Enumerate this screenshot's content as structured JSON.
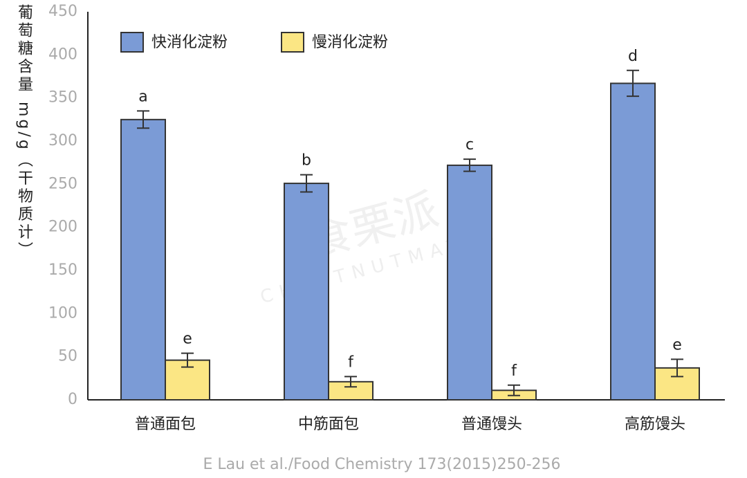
{
  "chart_data": {
    "type": "bar",
    "y_label": "葡萄糖含量 mg/g（干物质计）",
    "source": "E Lau et al./Food Chemistry 173(2015)250-256",
    "watermark": [
      "食栗派",
      "CHESTNUTMATES"
    ],
    "categories": [
      "普通面包",
      "中筋面包",
      "普通馒头",
      "高筋馒头"
    ],
    "series": [
      {
        "name": "快消化淀粉",
        "color": "#7b9bd6",
        "values": [
          325,
          251,
          272,
          367
        ],
        "errors": [
          10,
          10,
          7,
          15
        ],
        "significance": [
          "a",
          "b",
          "c",
          "d"
        ]
      },
      {
        "name": "慢消化淀粉",
        "color": "#fbe684",
        "values": [
          46,
          21,
          11,
          37
        ],
        "errors": [
          8,
          6,
          6,
          10
        ],
        "significance": [
          "e",
          "f",
          "f",
          "e"
        ]
      }
    ],
    "ylim": [
      0,
      450
    ],
    "yticks": [
      0,
      50,
      100,
      150,
      200,
      250,
      300,
      350,
      400,
      450
    ],
    "legend": "top-left"
  }
}
